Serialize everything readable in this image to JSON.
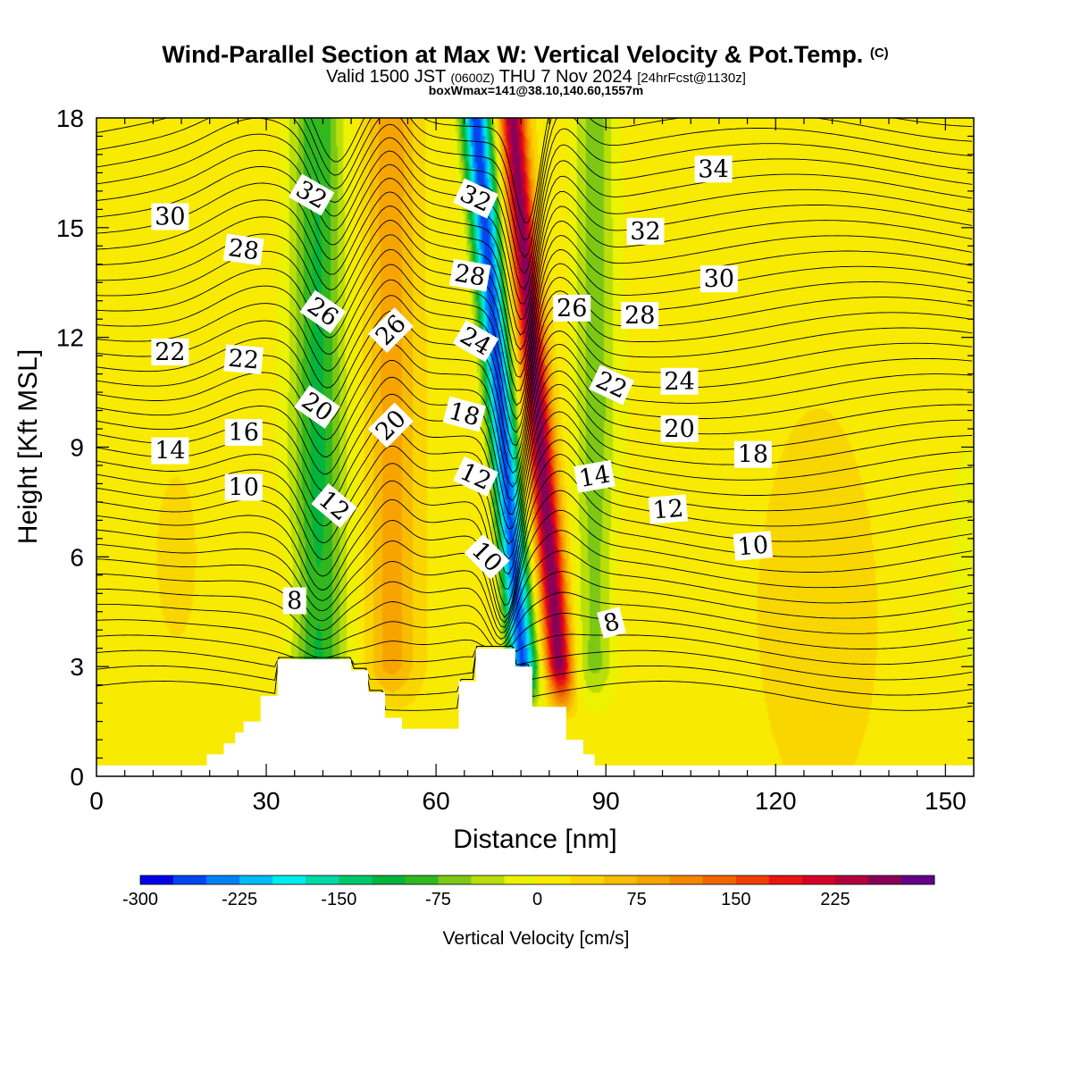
{
  "chart_data": {
    "type": "heatmap",
    "title": "Wind-Parallel Section at Max W: Vertical Velocity & Pot.Temp.",
    "title_mark": "(C)",
    "subtitle_parts": [
      "Valid 1500 JST ",
      "(0600Z)",
      " THU 7 Nov 2024 ",
      "[24hrFcst@1130z]"
    ],
    "subtitle2": "boxWmax=141@38.10,140.60,1557m",
    "xlabel": "Distance [nm]",
    "ylabel": "Height [Kft MSL]",
    "xlim": [
      0,
      155
    ],
    "ylim": [
      0,
      18
    ],
    "xticks": [
      0,
      30,
      60,
      90,
      120,
      150
    ],
    "yticks": [
      0,
      3,
      6,
      9,
      12,
      15,
      18
    ],
    "colorbar": {
      "label": "Vertical Velocity [cm/s]",
      "range": [
        -300,
        275
      ],
      "step": 25,
      "tick_values": [
        -300,
        -225,
        -150,
        -75,
        0,
        75,
        150,
        225
      ],
      "colors": [
        "#0000e8",
        "#0046f0",
        "#0082f5",
        "#00bcf8",
        "#00eded",
        "#00d9a8",
        "#00c86a",
        "#00b43c",
        "#30b81e",
        "#7cc814",
        "#b8df0a",
        "#ecf200",
        "#f8ea00",
        "#fad600",
        "#f8bd00",
        "#f7a400",
        "#f48600",
        "#f26400",
        "#ef3e00",
        "#ea1412",
        "#d50028",
        "#b1003c",
        "#8a0056",
        "#640088"
      ]
    },
    "vertical_velocity_features": [
      {
        "x": 39,
        "amplitude": -110,
        "width": 4.5,
        "note": "downdraft west ridge"
      },
      {
        "x": 52,
        "amplitude": 80,
        "width": 4.5,
        "note": "updraft"
      },
      {
        "x": 72,
        "amplitude": -280,
        "width": 2.6,
        "note": "strong downdraft"
      },
      {
        "x": 78.5,
        "amplitude": 250,
        "width": 2.3,
        "note": "strong updraft"
      },
      {
        "x": 88,
        "amplitude": -75,
        "width": 3.5,
        "note": "weak downdraft"
      }
    ],
    "terrain": {
      "x": [
        0,
        19.5,
        19.5,
        22.5,
        22.5,
        24.5,
        24.5,
        26,
        26,
        29,
        29,
        32,
        32,
        35,
        35,
        45,
        45,
        48,
        48,
        51,
        51,
        54,
        54,
        64,
        64,
        67,
        67,
        74,
        74,
        77,
        77,
        83,
        83,
        86,
        86,
        88,
        88,
        155
      ],
      "h": [
        0.3,
        0.3,
        0.6,
        0.6,
        0.9,
        0.9,
        1.2,
        1.2,
        1.5,
        1.5,
        2.2,
        2.2,
        3.2,
        3.2,
        3.2,
        3.2,
        2.9,
        2.9,
        2.3,
        2.3,
        1.6,
        1.6,
        1.3,
        1.3,
        2.6,
        2.6,
        3.5,
        3.5,
        3.0,
        3.0,
        1.9,
        1.9,
        1.0,
        1.0,
        0.6,
        0.6,
        0.3,
        0.3
      ]
    },
    "potential_temperature_contours": {
      "interval": 1,
      "labels": [
        {
          "text": "32",
          "x": 38,
          "y": 15.9,
          "angle": 30
        },
        {
          "text": "30",
          "x": 13,
          "y": 15.3,
          "angle": 0
        },
        {
          "text": "28",
          "x": 26,
          "y": 14.4,
          "angle": 8
        },
        {
          "text": "26",
          "x": 40,
          "y": 12.7,
          "angle": 35
        },
        {
          "text": "22",
          "x": 13,
          "y": 11.6,
          "angle": 0
        },
        {
          "text": "22",
          "x": 26,
          "y": 11.4,
          "angle": 5
        },
        {
          "text": "20",
          "x": 39,
          "y": 10.1,
          "angle": 35
        },
        {
          "text": "16",
          "x": 26,
          "y": 9.4,
          "angle": 0
        },
        {
          "text": "14",
          "x": 13,
          "y": 8.9,
          "angle": 0
        },
        {
          "text": "10",
          "x": 26,
          "y": 7.9,
          "angle": 0
        },
        {
          "text": "12",
          "x": 42,
          "y": 7.4,
          "angle": 40
        },
        {
          "text": "8",
          "x": 35,
          "y": 4.8,
          "angle": 0
        },
        {
          "text": "26",
          "x": 52,
          "y": 12.2,
          "angle": -45
        },
        {
          "text": "20",
          "x": 52,
          "y": 9.6,
          "angle": -45
        },
        {
          "text": "32",
          "x": 67,
          "y": 15.8,
          "angle": 25
        },
        {
          "text": "28",
          "x": 66,
          "y": 13.7,
          "angle": 10
        },
        {
          "text": "24",
          "x": 67,
          "y": 11.9,
          "angle": 30
        },
        {
          "text": "18",
          "x": 65,
          "y": 9.9,
          "angle": 15
        },
        {
          "text": "12",
          "x": 67,
          "y": 8.2,
          "angle": 25
        },
        {
          "text": "10",
          "x": 69,
          "y": 6.0,
          "angle": 45
        },
        {
          "text": "26",
          "x": 84,
          "y": 12.8,
          "angle": 0
        },
        {
          "text": "28",
          "x": 96,
          "y": 12.6,
          "angle": 0
        },
        {
          "text": "34",
          "x": 109,
          "y": 16.6,
          "angle": 0
        },
        {
          "text": "32",
          "x": 97,
          "y": 14.9,
          "angle": 0
        },
        {
          "text": "30",
          "x": 110,
          "y": 13.6,
          "angle": 0
        },
        {
          "text": "22",
          "x": 91,
          "y": 10.7,
          "angle": 25
        },
        {
          "text": "24",
          "x": 103,
          "y": 10.8,
          "angle": 0
        },
        {
          "text": "20",
          "x": 103,
          "y": 9.5,
          "angle": 0
        },
        {
          "text": "18",
          "x": 116,
          "y": 8.8,
          "angle": 0
        },
        {
          "text": "14",
          "x": 88,
          "y": 8.2,
          "angle": -10
        },
        {
          "text": "12",
          "x": 101,
          "y": 7.3,
          "angle": -5
        },
        {
          "text": "10",
          "x": 116,
          "y": 6.3,
          "angle": -5
        },
        {
          "text": "8",
          "x": 91,
          "y": 4.2,
          "angle": -15
        }
      ]
    }
  }
}
